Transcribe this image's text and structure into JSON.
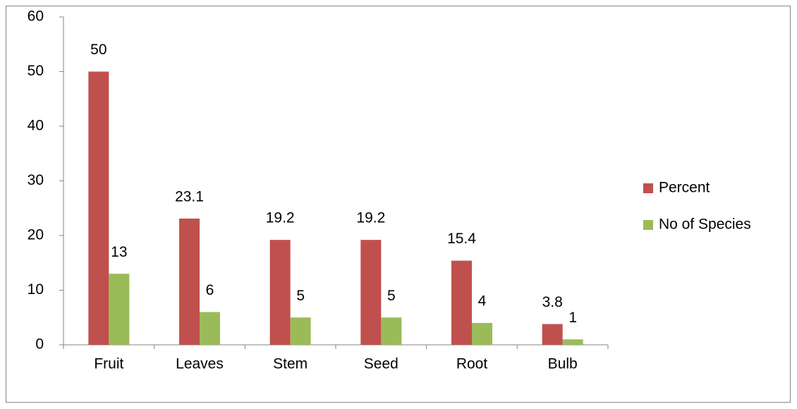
{
  "chart_data": {
    "type": "bar",
    "categories": [
      "Fruit",
      "Leaves",
      "Stem",
      "Seed",
      "Root",
      "Bulb"
    ],
    "series": [
      {
        "name": "Percent",
        "color": "#c0504d",
        "values": [
          50,
          23.1,
          19.2,
          19.2,
          15.4,
          3.8
        ]
      },
      {
        "name": "No of Species",
        "color": "#9bbb59",
        "values": [
          13,
          6,
          5,
          5,
          4,
          1
        ]
      }
    ],
    "ylim": [
      0,
      60
    ],
    "yticks": [
      0,
      10,
      20,
      30,
      40,
      50,
      60
    ],
    "legend": "right",
    "data_labels": true
  }
}
